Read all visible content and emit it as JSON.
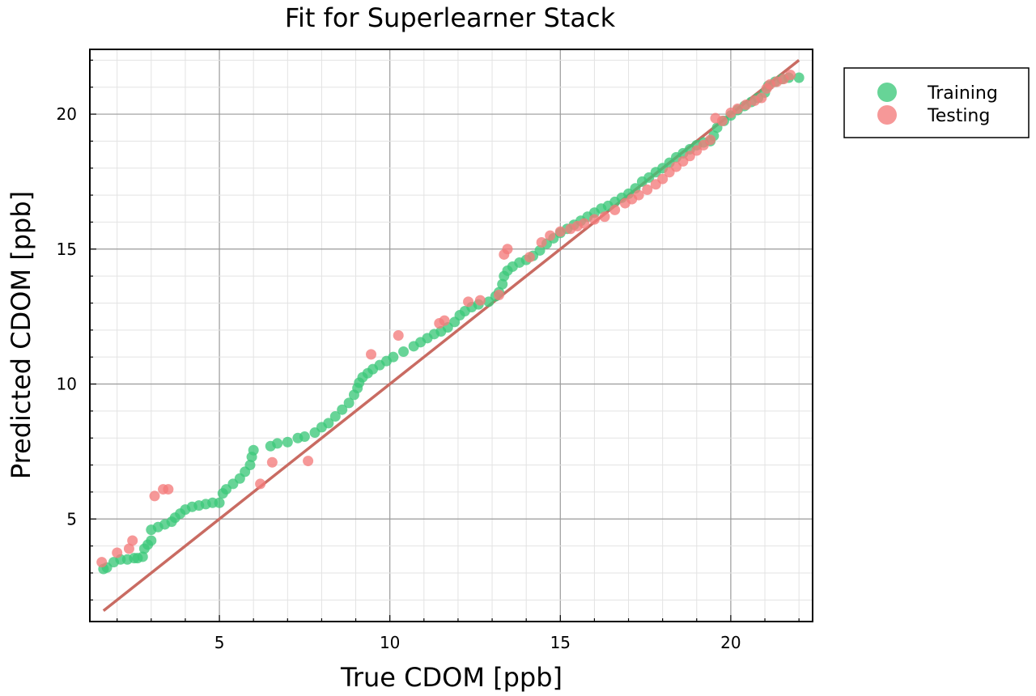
{
  "chart_data": {
    "type": "scatter",
    "title": "Fit for Superlearner Stack",
    "xlabel": "True CDOM [ppb]",
    "ylabel": "Predicted CDOM [ppb]",
    "xlim": [
      1.2,
      22.4
    ],
    "ylim": [
      1.2,
      22.4
    ],
    "xticks": [
      5,
      10,
      15,
      20
    ],
    "yticks": [
      5,
      10,
      15,
      20
    ],
    "grid": true,
    "minor_grid": true,
    "legend_position": "outside-top-right",
    "colors": {
      "Training": "#3cc87a",
      "Testing": "#f37b7b",
      "reference_line": "#c96b62"
    },
    "reference_line": {
      "x": [
        1.6,
        22.0
      ],
      "y": [
        1.6,
        22.0
      ]
    },
    "series": [
      {
        "name": "Training",
        "color": "#3cc87a",
        "points": [
          [
            1.6,
            3.15
          ],
          [
            1.7,
            3.2
          ],
          [
            1.9,
            3.4
          ],
          [
            2.1,
            3.5
          ],
          [
            2.3,
            3.5
          ],
          [
            2.5,
            3.55
          ],
          [
            2.6,
            3.55
          ],
          [
            2.75,
            3.6
          ],
          [
            2.8,
            3.9
          ],
          [
            2.9,
            4.05
          ],
          [
            3.0,
            4.2
          ],
          [
            3.0,
            4.6
          ],
          [
            3.2,
            4.7
          ],
          [
            3.4,
            4.8
          ],
          [
            3.6,
            4.9
          ],
          [
            3.7,
            5.05
          ],
          [
            3.85,
            5.2
          ],
          [
            4.0,
            5.35
          ],
          [
            4.2,
            5.45
          ],
          [
            4.4,
            5.5
          ],
          [
            4.6,
            5.55
          ],
          [
            4.8,
            5.6
          ],
          [
            5.0,
            5.6
          ],
          [
            5.1,
            5.95
          ],
          [
            5.2,
            6.1
          ],
          [
            5.4,
            6.3
          ],
          [
            5.6,
            6.5
          ],
          [
            5.75,
            6.75
          ],
          [
            5.9,
            7.0
          ],
          [
            5.95,
            7.3
          ],
          [
            6.0,
            7.55
          ],
          [
            6.5,
            7.7
          ],
          [
            6.7,
            7.8
          ],
          [
            7.0,
            7.85
          ],
          [
            7.3,
            8.0
          ],
          [
            7.5,
            8.05
          ],
          [
            7.8,
            8.2
          ],
          [
            8.0,
            8.4
          ],
          [
            8.2,
            8.55
          ],
          [
            8.4,
            8.8
          ],
          [
            8.6,
            9.05
          ],
          [
            8.8,
            9.3
          ],
          [
            8.95,
            9.6
          ],
          [
            9.05,
            9.85
          ],
          [
            9.1,
            10.05
          ],
          [
            9.2,
            10.25
          ],
          [
            9.35,
            10.4
          ],
          [
            9.5,
            10.55
          ],
          [
            9.7,
            10.7
          ],
          [
            9.9,
            10.85
          ],
          [
            10.1,
            11.0
          ],
          [
            10.4,
            11.2
          ],
          [
            10.7,
            11.4
          ],
          [
            10.9,
            11.55
          ],
          [
            11.1,
            11.7
          ],
          [
            11.3,
            11.85
          ],
          [
            11.5,
            11.95
          ],
          [
            11.7,
            12.1
          ],
          [
            11.9,
            12.3
          ],
          [
            12.05,
            12.55
          ],
          [
            12.2,
            12.7
          ],
          [
            12.4,
            12.85
          ],
          [
            12.6,
            12.95
          ],
          [
            12.9,
            13.05
          ],
          [
            13.1,
            13.25
          ],
          [
            13.2,
            13.4
          ],
          [
            13.3,
            13.7
          ],
          [
            13.35,
            14.0
          ],
          [
            13.45,
            14.2
          ],
          [
            13.6,
            14.35
          ],
          [
            13.8,
            14.5
          ],
          [
            14.0,
            14.6
          ],
          [
            14.2,
            14.75
          ],
          [
            14.4,
            14.95
          ],
          [
            14.6,
            15.2
          ],
          [
            14.8,
            15.4
          ],
          [
            15.0,
            15.6
          ],
          [
            15.2,
            15.75
          ],
          [
            15.4,
            15.9
          ],
          [
            15.6,
            16.05
          ],
          [
            15.8,
            16.2
          ],
          [
            16.0,
            16.35
          ],
          [
            16.2,
            16.5
          ],
          [
            16.4,
            16.6
          ],
          [
            16.6,
            16.75
          ],
          [
            16.8,
            16.9
          ],
          [
            17.0,
            17.05
          ],
          [
            17.2,
            17.25
          ],
          [
            17.4,
            17.5
          ],
          [
            17.6,
            17.65
          ],
          [
            17.8,
            17.85
          ],
          [
            18.0,
            18.0
          ],
          [
            18.2,
            18.2
          ],
          [
            18.4,
            18.4
          ],
          [
            18.6,
            18.55
          ],
          [
            18.8,
            18.7
          ],
          [
            19.0,
            18.85
          ],
          [
            19.2,
            18.95
          ],
          [
            19.4,
            19.0
          ],
          [
            19.5,
            19.2
          ],
          [
            19.6,
            19.5
          ],
          [
            19.8,
            19.75
          ],
          [
            20.0,
            19.95
          ],
          [
            20.2,
            20.15
          ],
          [
            20.4,
            20.3
          ],
          [
            20.6,
            20.45
          ],
          [
            20.8,
            20.6
          ],
          [
            21.0,
            20.8
          ],
          [
            21.1,
            21.05
          ],
          [
            21.3,
            21.2
          ],
          [
            21.5,
            21.3
          ],
          [
            21.7,
            21.35
          ],
          [
            22.0,
            21.35
          ]
        ]
      },
      {
        "name": "Testing",
        "color": "#f37b7b",
        "points": [
          [
            1.55,
            3.4
          ],
          [
            2.0,
            3.75
          ],
          [
            2.35,
            3.9
          ],
          [
            2.45,
            4.2
          ],
          [
            3.1,
            5.85
          ],
          [
            3.35,
            6.1
          ],
          [
            3.5,
            6.1
          ],
          [
            6.2,
            6.3
          ],
          [
            6.55,
            7.1
          ],
          [
            7.6,
            7.15
          ],
          [
            9.45,
            11.1
          ],
          [
            10.25,
            11.8
          ],
          [
            11.45,
            12.25
          ],
          [
            11.6,
            12.35
          ],
          [
            12.3,
            13.05
          ],
          [
            12.65,
            13.1
          ],
          [
            13.2,
            13.3
          ],
          [
            13.35,
            14.8
          ],
          [
            13.45,
            15.0
          ],
          [
            14.1,
            14.7
          ],
          [
            14.45,
            15.25
          ],
          [
            14.7,
            15.5
          ],
          [
            15.0,
            15.65
          ],
          [
            15.3,
            15.75
          ],
          [
            15.5,
            15.85
          ],
          [
            15.7,
            15.95
          ],
          [
            16.0,
            16.1
          ],
          [
            16.3,
            16.2
          ],
          [
            16.6,
            16.45
          ],
          [
            16.9,
            16.7
          ],
          [
            17.1,
            16.85
          ],
          [
            17.3,
            17.0
          ],
          [
            17.55,
            17.2
          ],
          [
            17.8,
            17.4
          ],
          [
            18.0,
            17.6
          ],
          [
            18.2,
            17.85
          ],
          [
            18.4,
            18.05
          ],
          [
            18.6,
            18.25
          ],
          [
            18.8,
            18.45
          ],
          [
            19.0,
            18.65
          ],
          [
            19.2,
            18.85
          ],
          [
            19.4,
            19.05
          ],
          [
            19.55,
            19.85
          ],
          [
            19.75,
            19.75
          ],
          [
            20.0,
            20.05
          ],
          [
            20.2,
            20.2
          ],
          [
            20.45,
            20.35
          ],
          [
            20.7,
            20.5
          ],
          [
            20.9,
            20.6
          ],
          [
            21.05,
            20.95
          ],
          [
            21.15,
            21.1
          ],
          [
            21.35,
            21.2
          ],
          [
            21.55,
            21.3
          ],
          [
            21.75,
            21.45
          ]
        ]
      }
    ]
  }
}
